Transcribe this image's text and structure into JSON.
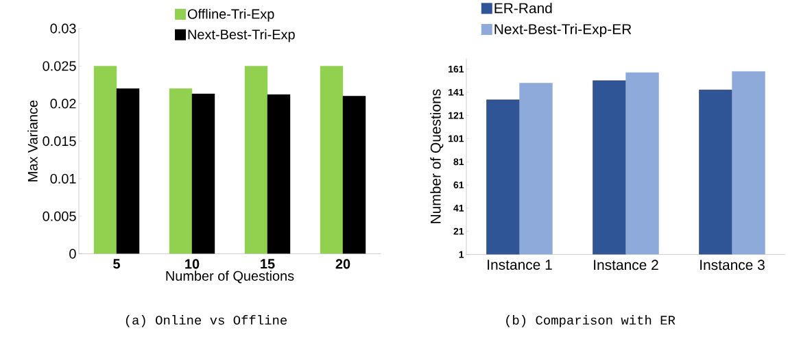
{
  "chart_data": [
    {
      "type": "bar",
      "categories": [
        "5",
        "10",
        "15",
        "20"
      ],
      "xlabel": "Number of Questions",
      "ylabel": "Max Variance",
      "ylim": [
        0,
        0.03
      ],
      "yticks": [
        0,
        0.005,
        0.01,
        0.015,
        0.02,
        0.025,
        0.03
      ],
      "legend": "top",
      "annotations": [
        "(a) Online vs Offline"
      ],
      "series": [
        {
          "name": "Offline-Tri-Exp",
          "color": "#92d050",
          "values": [
            0.025,
            0.022,
            0.025,
            0.025
          ]
        },
        {
          "name": "Next-Best-Tri-Exp",
          "color": "#000000",
          "values": [
            0.022,
            0.0213,
            0.0212,
            0.021
          ]
        }
      ]
    },
    {
      "type": "bar",
      "categories": [
        "Instance 1",
        "Instance 2",
        "Instance 3"
      ],
      "ylabel": "Number of Questions",
      "ylim": [
        1,
        170
      ],
      "yticks": [
        1,
        21,
        41,
        61,
        81,
        101,
        121,
        141,
        161
      ],
      "legend": "top left",
      "annotations": [
        "(b) Comparison with ER"
      ],
      "series": [
        {
          "name": "ER-Rand",
          "color": "#2f5597",
          "values": [
            134.5,
            151,
            143
          ]
        },
        {
          "name": "Next-Best-Tri-Exp-ER",
          "color": "#8eaadb",
          "values": [
            149,
            158,
            159
          ]
        }
      ]
    }
  ]
}
